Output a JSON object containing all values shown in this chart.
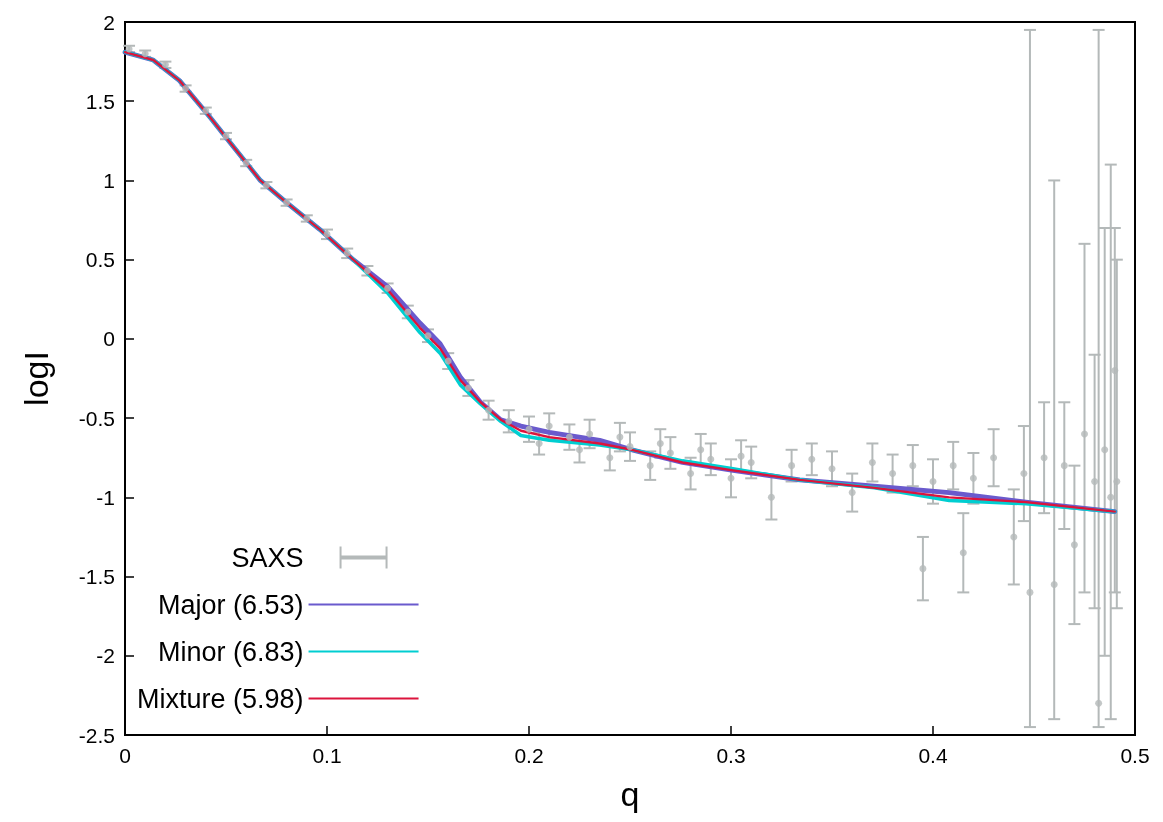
{
  "chart_data": {
    "type": "line",
    "xlabel": "q",
    "ylabel": "logI",
    "xlim": [
      0,
      0.5
    ],
    "xticks": [
      0,
      0.1,
      0.2,
      0.3,
      0.4,
      0.5
    ],
    "ylim": [
      -2.5,
      2
    ],
    "yticks": [
      -2.5,
      -2,
      -1.5,
      -1,
      -0.5,
      0,
      0.5,
      1,
      1.5,
      2
    ],
    "grid": false,
    "legend": "bottom left",
    "line_style": "solid",
    "series": [
      {
        "name": "SAXS",
        "type": "scatter",
        "marker": "circle",
        "color": "#b4b9b9",
        "x": [
          0.002,
          0.01,
          0.02,
          0.03,
          0.04,
          0.05,
          0.06,
          0.07,
          0.08,
          0.09,
          0.1,
          0.11,
          0.12,
          0.13,
          0.14,
          0.15,
          0.16,
          0.17,
          0.18,
          0.19,
          0.2,
          0.205,
          0.21,
          0.22,
          0.225,
          0.23,
          0.24,
          0.245,
          0.25,
          0.26,
          0.265,
          0.27,
          0.28,
          0.285,
          0.29,
          0.3,
          0.305,
          0.31,
          0.32,
          0.33,
          0.34,
          0.35,
          0.36,
          0.37,
          0.38,
          0.39,
          0.395,
          0.4,
          0.41,
          0.415,
          0.42,
          0.43,
          0.44,
          0.445,
          0.448,
          0.455,
          0.46,
          0.465,
          0.47,
          0.475,
          0.48,
          0.482,
          0.485,
          0.488,
          0.49,
          0.491
        ],
        "values": [
          1.83,
          1.8,
          1.73,
          1.58,
          1.44,
          1.28,
          1.11,
          0.97,
          0.86,
          0.76,
          0.66,
          0.54,
          0.43,
          0.32,
          0.17,
          0.02,
          -0.14,
          -0.31,
          -0.45,
          -0.52,
          -0.57,
          -0.66,
          -0.55,
          -0.62,
          -0.7,
          -0.6,
          -0.75,
          -0.62,
          -0.68,
          -0.8,
          -0.66,
          -0.72,
          -0.85,
          -0.7,
          -0.76,
          -0.88,
          -0.74,
          -0.78,
          -1.0,
          -0.8,
          -0.76,
          -0.82,
          -0.97,
          -0.78,
          -0.85,
          -0.8,
          -1.45,
          -0.9,
          -0.8,
          -1.35,
          -0.88,
          -0.75,
          -1.25,
          -0.85,
          -1.6,
          -0.75,
          -1.55,
          -0.8,
          -1.3,
          -0.6,
          -0.9,
          -2.3,
          -0.7,
          -1.0,
          -0.2,
          -0.9
        ],
        "errors": [
          0.02,
          0.02,
          0.02,
          0.02,
          0.02,
          0.02,
          0.02,
          0.02,
          0.02,
          0.02,
          0.03,
          0.03,
          0.03,
          0.03,
          0.04,
          0.04,
          0.05,
          0.05,
          0.06,
          0.07,
          0.08,
          0.07,
          0.08,
          0.08,
          0.08,
          0.09,
          0.08,
          0.09,
          0.09,
          0.09,
          0.09,
          0.1,
          0.1,
          0.1,
          0.1,
          0.12,
          0.1,
          0.1,
          0.14,
          0.1,
          0.1,
          0.11,
          0.12,
          0.12,
          0.12,
          0.13,
          0.2,
          0.14,
          0.15,
          0.25,
          0.16,
          0.18,
          0.3,
          0.3,
          [
            -2.45,
            1.95
          ],
          0.35,
          [
            -2.4,
            1.0
          ],
          0.4,
          0.5,
          [
            -1.6,
            0.6
          ],
          0.8,
          [
            -2.45,
            1.95
          ],
          [
            -2.0,
            0.7
          ],
          [
            -2.4,
            1.1
          ],
          [
            -1.6,
            0.7
          ],
          [
            -1.7,
            0.5
          ]
        ]
      },
      {
        "name": "Major (6.53)",
        "color": "#6a5acd",
        "x": [
          0,
          0.014,
          0.027,
          0.042,
          0.052,
          0.067,
          0.08,
          0.0965,
          0.113,
          0.13,
          0.146,
          0.156,
          0.166,
          0.176,
          0.186,
          0.196,
          0.21,
          0.235,
          0.251,
          0.276,
          0.301,
          0.334,
          0.371,
          0.408,
          0.446,
          0.49
        ],
        "values": [
          1.81,
          1.76,
          1.63,
          1.4,
          1.24,
          1.0,
          0.86,
          0.69,
          0.5,
          0.33,
          0.1,
          -0.03,
          -0.24,
          -0.4,
          -0.51,
          -0.55,
          -0.59,
          -0.64,
          -0.7,
          -0.78,
          -0.83,
          -0.89,
          -0.93,
          -0.97,
          -1.03,
          -1.09
        ]
      },
      {
        "name": "Minor (6.83)",
        "color": "#00ced1",
        "x": [
          0,
          0.014,
          0.027,
          0.042,
          0.052,
          0.067,
          0.08,
          0.0965,
          0.113,
          0.13,
          0.146,
          0.156,
          0.166,
          0.176,
          0.186,
          0.196,
          0.21,
          0.235,
          0.251,
          0.276,
          0.301,
          0.334,
          0.371,
          0.408,
          0.446,
          0.49
        ],
        "values": [
          1.81,
          1.76,
          1.63,
          1.4,
          1.24,
          1.0,
          0.86,
          0.69,
          0.5,
          0.29,
          0.04,
          -0.09,
          -0.29,
          -0.41,
          -0.52,
          -0.61,
          -0.64,
          -0.67,
          -0.7,
          -0.77,
          -0.82,
          -0.89,
          -0.94,
          -1.02,
          -1.04,
          -1.09
        ]
      },
      {
        "name": "Mixture (5.98)",
        "color": "#dc143c",
        "x": [
          0,
          0.014,
          0.027,
          0.042,
          0.052,
          0.067,
          0.08,
          0.0965,
          0.113,
          0.13,
          0.146,
          0.156,
          0.166,
          0.176,
          0.186,
          0.196,
          0.21,
          0.235,
          0.251,
          0.276,
          0.301,
          0.334,
          0.371,
          0.408,
          0.446,
          0.49
        ],
        "values": [
          1.81,
          1.76,
          1.63,
          1.4,
          1.24,
          1.0,
          0.86,
          0.69,
          0.5,
          0.31,
          0.07,
          -0.06,
          -0.26,
          -0.4,
          -0.51,
          -0.58,
          -0.62,
          -0.66,
          -0.7,
          -0.78,
          -0.83,
          -0.89,
          -0.94,
          -1.0,
          -1.03,
          -1.09
        ]
      }
    ]
  }
}
